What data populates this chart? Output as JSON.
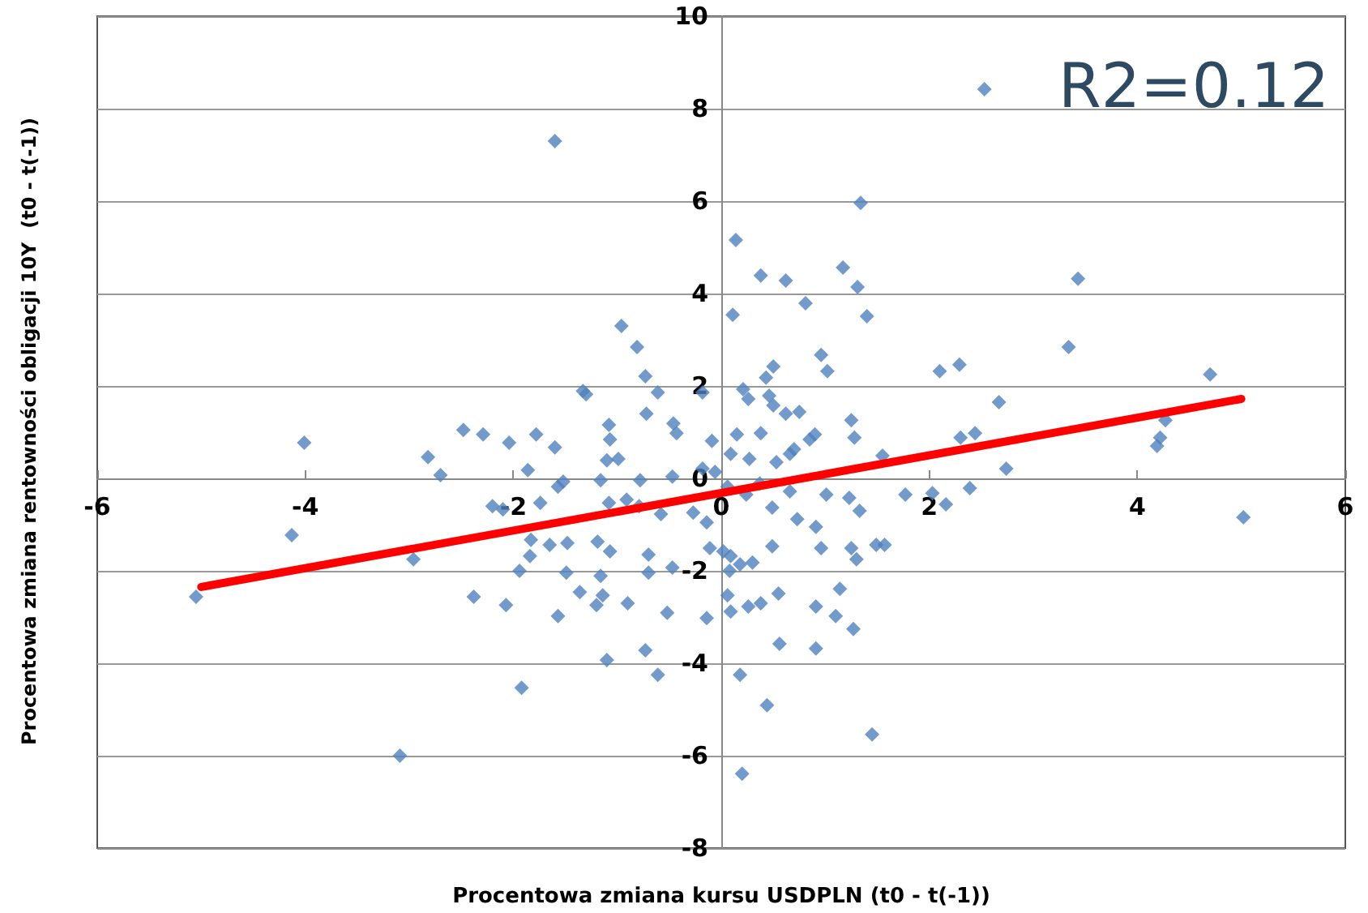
{
  "chart_data": {
    "type": "scatter",
    "xlabel": "Procentowa zmiana kursu USDPLN (t0 - t(-1))",
    "ylabel": "Procentowa zmiana rentowności obligacji 10Y  (t0 - t(-1))",
    "annotations": [
      "R2=0.12"
    ],
    "xlim": [
      -6,
      6
    ],
    "xticks": [
      -6,
      -4,
      -2,
      0,
      2,
      4,
      6
    ],
    "ylim": [
      -8,
      10
    ],
    "yticks": [
      -8,
      -6,
      -4,
      -2,
      0,
      2,
      4,
      6,
      8,
      10
    ],
    "grid": "y",
    "series": [
      {
        "type": "scatter",
        "marker": "diamond",
        "color": "#4f81bd",
        "x": [
          -1.6,
          2.53,
          0.14,
          1.34,
          0.38,
          0.62,
          1.17,
          1.31,
          0.81,
          1.4,
          0.11,
          -0.96,
          -0.81,
          3.43,
          3.34,
          2.29,
          2.1,
          2.67,
          4.27,
          4.7,
          0.96,
          1.02,
          0.5,
          0.43,
          -0.73,
          -0.61,
          -1.33,
          -1.3,
          -0.18,
          0.21,
          0.26,
          0.46,
          0.5,
          0.62,
          0.75,
          1.25,
          -0.72,
          -1.08,
          -0.46,
          -0.43,
          -1.07,
          0.9,
          1.28,
          0.85,
          2.3,
          2.44,
          4.22,
          4.19,
          0.38,
          0.15,
          -0.09,
          0.09,
          0.27,
          0.53,
          0.66,
          0.7,
          1.55,
          2.74,
          -0.99,
          -1.1,
          -1.6,
          -2.04,
          -2.29,
          -2.48,
          -4.01,
          -2.82,
          -2.7,
          -1.78,
          -1.86,
          -1.52,
          -1.57,
          -1.16,
          -0.78,
          -0.47,
          -0.18,
          -0.06,
          0.06,
          0.37,
          0.66,
          1.01,
          1.23,
          1.33,
          1.77,
          2.03,
          2.16,
          2.39,
          5.02,
          -2.2,
          -2.1,
          -1.74,
          -1.08,
          -0.91,
          -0.79,
          -0.58,
          -0.27,
          -0.14,
          0.24,
          0.49,
          0.73,
          0.91,
          0.96,
          1.25,
          1.49,
          1.57,
          -4.13,
          -2.96,
          -1.83,
          -1.65,
          -1.48,
          -1.19,
          -1.07,
          -0.7,
          -0.11,
          0.02,
          0.09,
          0.18,
          0.08,
          0.3,
          0.49,
          1.3,
          -1.84,
          -1.94,
          -1.49,
          -1.16,
          -0.7,
          -0.47,
          -1.14,
          -1.36,
          -1.57,
          -0.9,
          -0.52,
          -0.14,
          0.06,
          0.09,
          0.26,
          0.38,
          0.55,
          0.91,
          1.14,
          1.1,
          1.27,
          0.91,
          0.56,
          -2.38,
          -2.07,
          -1.2,
          -0.73,
          -1.1,
          -0.61,
          0.18,
          0.44,
          -1.92,
          1.45,
          -3.09,
          0.2,
          -5.05
        ],
        "values": [
          7.3,
          8.42,
          5.16,
          5.96,
          4.39,
          4.28,
          4.56,
          4.14,
          3.79,
          3.51,
          3.54,
          3.3,
          2.84,
          4.32,
          2.84,
          2.46,
          2.32,
          1.65,
          1.26,
          2.25,
          2.67,
          2.32,
          2.42,
          2.18,
          2.21,
          1.86,
          1.89,
          1.82,
          1.86,
          1.93,
          1.72,
          1.79,
          1.58,
          1.4,
          1.44,
          1.26,
          1.4,
          1.16,
          1.19,
          0.98,
          0.84,
          0.95,
          0.88,
          0.84,
          0.88,
          0.98,
          0.88,
          0.7,
          0.98,
          0.95,
          0.81,
          0.53,
          0.42,
          0.35,
          0.53,
          0.63,
          0.49,
          0.21,
          0.42,
          0.39,
          0.67,
          0.77,
          0.95,
          1.05,
          0.77,
          0.46,
          0.07,
          0.95,
          0.18,
          -0.07,
          -0.18,
          -0.04,
          -0.04,
          0.04,
          0.21,
          0.14,
          -0.18,
          -0.11,
          -0.28,
          -0.35,
          -0.42,
          -0.7,
          -0.35,
          -0.32,
          -0.56,
          -0.21,
          -0.84,
          -0.6,
          -0.67,
          -0.53,
          -0.53,
          -0.46,
          -0.6,
          -0.77,
          -0.74,
          -0.95,
          -0.35,
          -0.63,
          -0.88,
          -1.05,
          -1.51,
          -1.51,
          -1.44,
          -1.44,
          -1.23,
          -1.75,
          -1.33,
          -1.44,
          -1.4,
          -1.37,
          -1.58,
          -1.65,
          -1.51,
          -1.58,
          -1.68,
          -1.86,
          -2.0,
          -1.82,
          -1.47,
          -1.75,
          -1.68,
          -2.0,
          -2.04,
          -2.11,
          -2.04,
          -1.93,
          -2.53,
          -2.46,
          -2.98,
          -2.7,
          -2.91,
          -3.02,
          -2.53,
          -2.88,
          -2.77,
          -2.7,
          -2.49,
          -2.77,
          -2.39,
          -2.98,
          -3.26,
          -3.68,
          -3.58,
          -2.56,
          -2.74,
          -2.74,
          -3.72,
          -3.93,
          -4.25,
          -4.25,
          -4.91,
          -4.53,
          -5.54,
          -6.0,
          -6.39,
          -2.56
        ]
      },
      {
        "type": "line",
        "marker": "none",
        "line_style": "solid",
        "color": "#ff0000",
        "x": [
          -5,
          5
        ],
        "values": [
          -2.35,
          1.72
        ]
      }
    ]
  }
}
